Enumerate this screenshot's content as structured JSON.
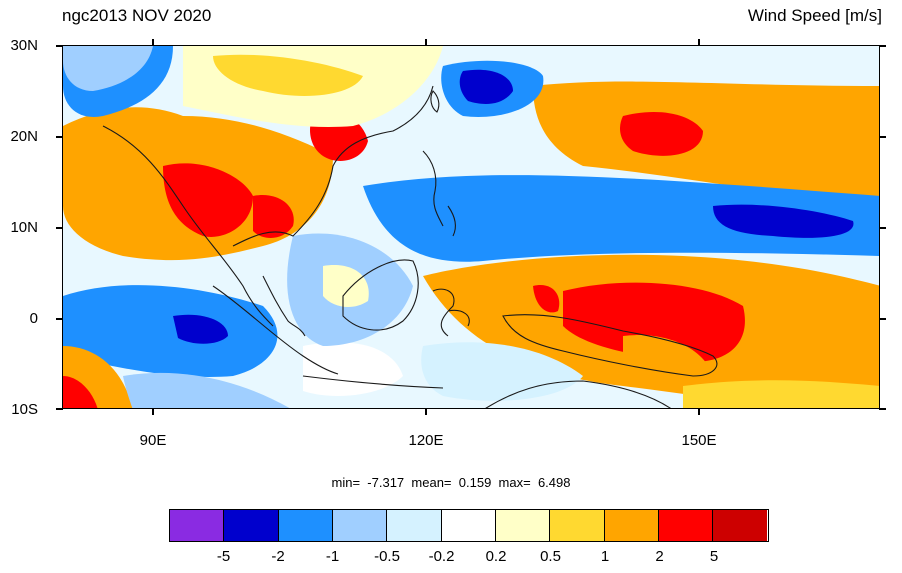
{
  "title_left": "ngc2013 NOV 2020",
  "title_right": "Wind Speed [m/s]",
  "lat_labels": [
    "30N",
    "20N",
    "10N",
    "0",
    "10S"
  ],
  "lon_labels": [
    "90E",
    "120E",
    "150E"
  ],
  "stats": {
    "min_label": "min=",
    "min": "-7.317",
    "mean_label": "mean=",
    "mean": "0.159",
    "max_label": "max=",
    "max": "6.498"
  },
  "colorbar": {
    "colors": [
      "#8a2be2",
      "#0000cd",
      "#1e90ff",
      "#a0cfff",
      "#d5f2ff",
      "#ffffff",
      "#ffffc8",
      "#ffd930",
      "#ffa500",
      "#ff0000",
      "#cd0000"
    ],
    "labels": [
      "-5",
      "-2",
      "-1",
      "-0.5",
      "-0.2",
      "0.2",
      "0.5",
      "1",
      "2",
      "5"
    ]
  },
  "map": {
    "lat_range": [
      -10,
      30
    ],
    "lon_range": [
      80,
      170
    ],
    "colors": {
      "strong_pos": "#ff0000",
      "pos": "#ffa500",
      "mild_pos": "#ffd930",
      "slight_pos": "#ffffc8",
      "neutral": "#ffffff",
      "slight_neg": "#d5f2ff",
      "mild_neg": "#a0cfff",
      "neg": "#1e90ff",
      "strong_neg": "#0000cd",
      "coast": "#1a1a1a"
    }
  }
}
